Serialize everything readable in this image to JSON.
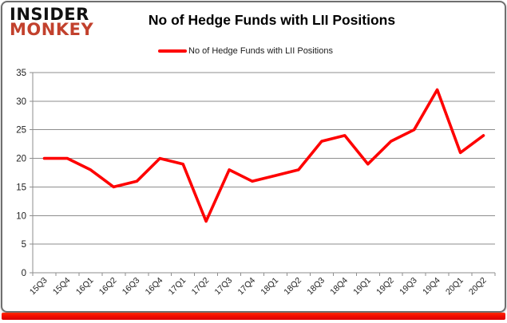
{
  "brand": {
    "line1": "INSIDER",
    "line2": "MONKEY",
    "monkey_color": "#c2412d"
  },
  "header": {
    "title": "No of Hedge Funds with LII Positions"
  },
  "legend": {
    "label": "No of Hedge Funds with LII Positions",
    "line_color": "#fe0000"
  },
  "chart_data": {
    "type": "line",
    "title": "No of Hedge Funds with LII Positions",
    "categories": [
      "15Q3",
      "15Q4",
      "16Q1",
      "16Q2",
      "16Q3",
      "16Q4",
      "17Q1",
      "17Q2",
      "17Q3",
      "17Q4",
      "18Q1",
      "18Q2",
      "18Q3",
      "18Q4",
      "19Q1",
      "19Q2",
      "19Q3",
      "19Q4",
      "20Q1",
      "20Q2"
    ],
    "series": [
      {
        "name": "No of Hedge Funds with LII Positions",
        "color": "#fe0000",
        "values": [
          20,
          20,
          18,
          15,
          16,
          20,
          19,
          9,
          18,
          16,
          17,
          18,
          23,
          24,
          19,
          23,
          25,
          32,
          21,
          24
        ]
      }
    ],
    "xlabel": "",
    "ylabel": "",
    "ylim": [
      0,
      35
    ],
    "yticks": [
      0,
      5,
      10,
      15,
      20,
      25,
      30,
      35
    ],
    "grid": true,
    "gridline_color": "#8e8e8e",
    "axis_color": "#8e8e8e",
    "tick_label_color": "#1f1f1f",
    "legend_position": "top"
  },
  "footer": {
    "bar_color": "#f40d00"
  }
}
